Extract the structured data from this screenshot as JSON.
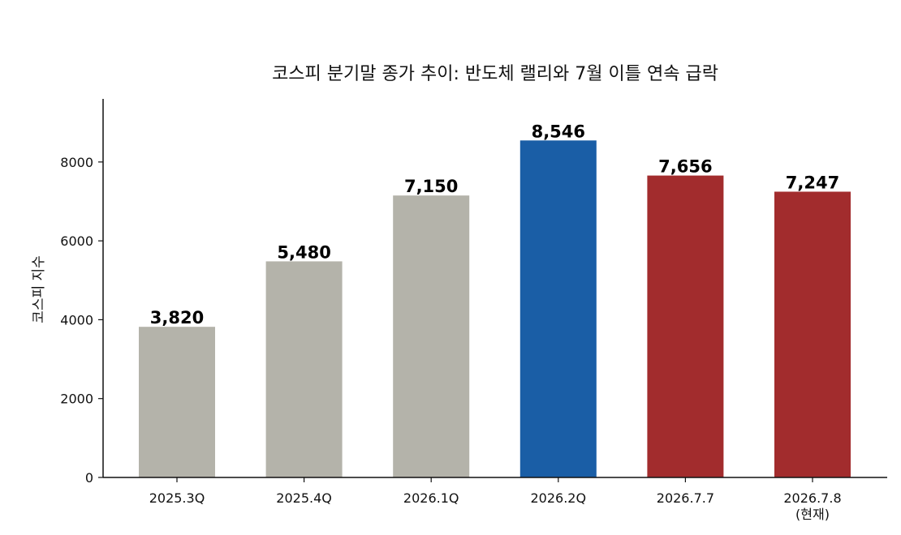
{
  "chart_data": {
    "type": "bar",
    "title": "코스피 분기말 종가 추이: 반도체 랠리와 7월 이틀 연속 급락",
    "xlabel": "",
    "ylabel": "코스피 지수",
    "ylim": [
      0,
      9600
    ],
    "yticks": [
      0,
      2000,
      4000,
      6000,
      8000
    ],
    "categories": [
      "2025.3Q",
      "2025.4Q",
      "2026.1Q",
      "2026.2Q",
      "2026.7.7",
      "2026.7.8\n(현재)"
    ],
    "values": [
      3820,
      5480,
      7150,
      8546,
      7656,
      7247
    ],
    "value_labels": [
      "3,820",
      "5,480",
      "7,150",
      "8,546",
      "7,656",
      "7,247"
    ],
    "colors": [
      "#b4b3aa",
      "#b4b3aa",
      "#b4b3aa",
      "#1a5ea6",
      "#a22c2d",
      "#a22c2d"
    ],
    "grid": false,
    "legend": "none"
  }
}
